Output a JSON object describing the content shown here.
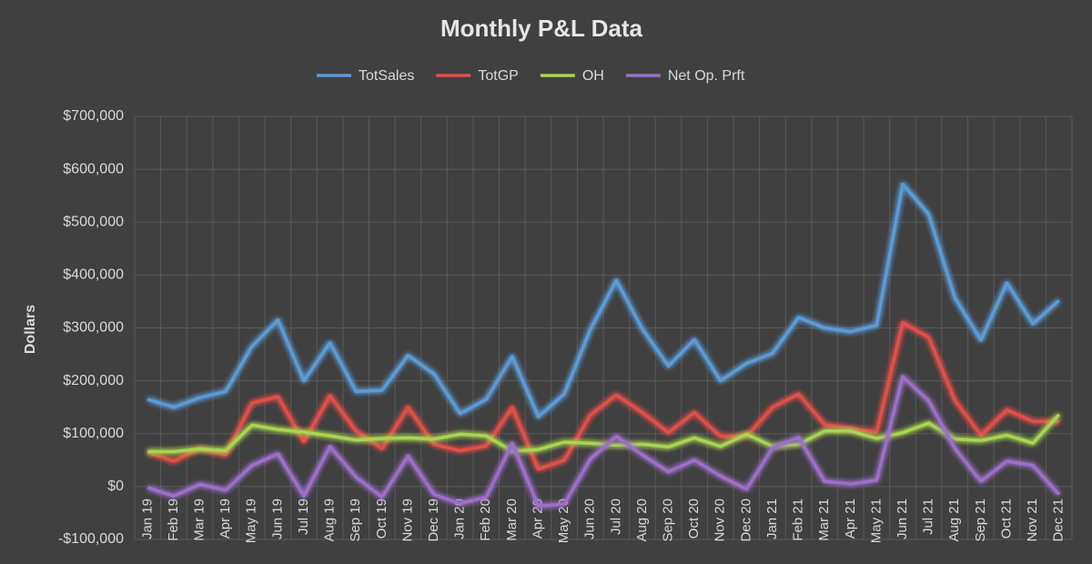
{
  "chart_data": {
    "type": "line",
    "title": "Monthly P&L Data",
    "y_label": "Dollars",
    "categories": [
      "Jan 19",
      "Feb 19",
      "Mar 19",
      "Apr 19",
      "May 19",
      "Jun 19",
      "Jul 19",
      "Aug 19",
      "Sep 19",
      "Oct 19",
      "Nov 19",
      "Dec 19",
      "Jan 20",
      "Feb 20",
      "Mar 20",
      "Apr 20",
      "May 20",
      "Jun 20",
      "Jul 20",
      "Aug 20",
      "Sep 20",
      "Oct 20",
      "Nov 20",
      "Dec 20",
      "Jan 21",
      "Feb 21",
      "Mar 21",
      "Apr 21",
      "May 21",
      "Jun 21",
      "Jul 21",
      "Aug 21",
      "Sep 21",
      "Oct 21",
      "Nov 21",
      "Dec 21"
    ],
    "series": [
      {
        "name": "TotSales",
        "color": "#5b9bd5",
        "values": [
          165000,
          150000,
          168000,
          180000,
          265000,
          315000,
          200000,
          272000,
          180000,
          182000,
          248000,
          213000,
          138000,
          165000,
          246000,
          132000,
          175000,
          297000,
          390000,
          298000,
          228000,
          278000,
          200000,
          233000,
          252000,
          320000,
          300000,
          293000,
          305000,
          572000,
          515000,
          357000,
          277000,
          385000,
          308000,
          352000
        ]
      },
      {
        "name": "TotGP",
        "color": "#e0504a",
        "values": [
          65000,
          48000,
          72000,
          60000,
          158000,
          170000,
          85000,
          172000,
          105000,
          72000,
          150000,
          80000,
          68000,
          77000,
          150000,
          33000,
          50000,
          135000,
          173000,
          140000,
          102000,
          140000,
          95000,
          95000,
          150000,
          175000,
          117000,
          110000,
          103000,
          310000,
          282000,
          163000,
          97000,
          145000,
          123000,
          123000
        ]
      },
      {
        "name": "OH",
        "color": "#a9d451",
        "values": [
          66000,
          66000,
          71000,
          68000,
          116000,
          108000,
          103000,
          96000,
          88000,
          91000,
          92000,
          90000,
          99000,
          96000,
          67000,
          70000,
          84000,
          82000,
          78000,
          80000,
          75000,
          92000,
          76000,
          99000,
          76000,
          80000,
          105000,
          105000,
          91000,
          102000,
          120000,
          90000,
          87000,
          97000,
          82000,
          136000
        ]
      },
      {
        "name": "Net Op. Prft",
        "color": "#9b6fc8",
        "values": [
          -2000,
          -18000,
          4000,
          -7000,
          40000,
          62000,
          -18000,
          76000,
          18000,
          -20000,
          58000,
          -15000,
          -32000,
          -20000,
          82000,
          -37000,
          -33000,
          52000,
          95000,
          60000,
          28000,
          50000,
          20000,
          -5000,
          73000,
          93000,
          10000,
          5000,
          12000,
          208000,
          162000,
          72000,
          10000,
          48000,
          40000,
          -15000
        ]
      }
    ],
    "ylim": [
      -100000,
      700000
    ],
    "yticks": [
      {
        "value": -100000,
        "label": "-$100,000"
      },
      {
        "value": 0,
        "label": "$0"
      },
      {
        "value": 100000,
        "label": "$100,000"
      },
      {
        "value": 200000,
        "label": "$200,000"
      },
      {
        "value": 300000,
        "label": "$300,000"
      },
      {
        "value": 400000,
        "label": "$400,000"
      },
      {
        "value": 500000,
        "label": "$500,000"
      },
      {
        "value": 600000,
        "label": "$600,000"
      },
      {
        "value": 700000,
        "label": "$700,000"
      }
    ],
    "grid": true,
    "legend": "top"
  }
}
